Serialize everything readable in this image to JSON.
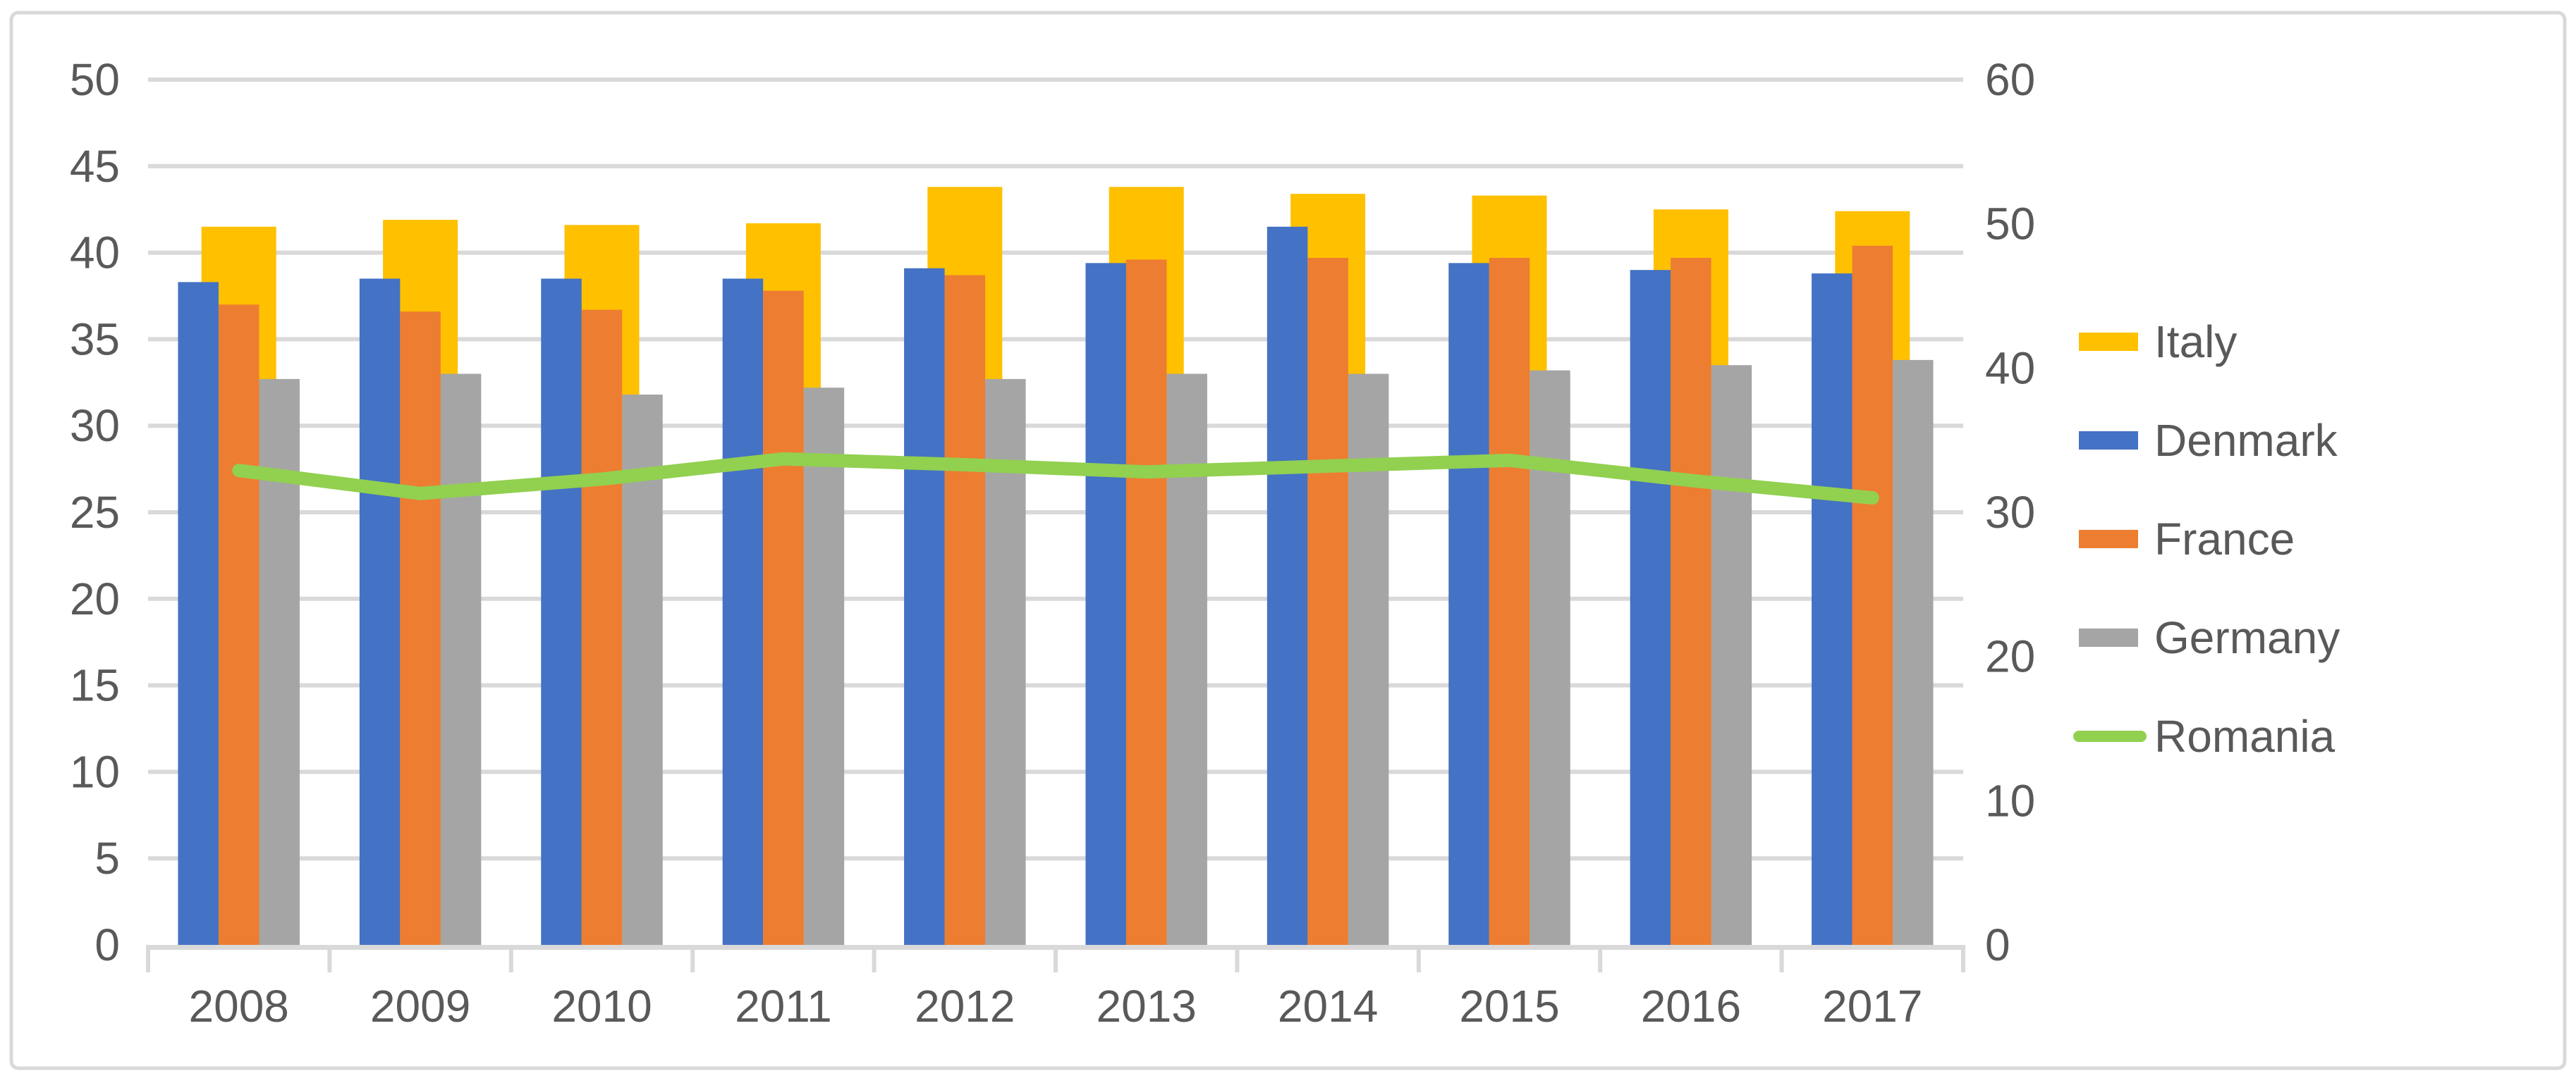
{
  "page": {
    "background": "#FFFFFF",
    "chart_border_color": "#D9D9D9",
    "text_color": "#595959",
    "gridline_color": "#D9D9D9"
  },
  "chart_data": {
    "type": "bar",
    "subtype": "combo-bar-line-dual-axis",
    "title": "",
    "xlabel": "",
    "ylabel": "",
    "grid": true,
    "legend_position": "right",
    "categories": [
      "2008",
      "2009",
      "2010",
      "2011",
      "2012",
      "2013",
      "2014",
      "2015",
      "2016",
      "2017"
    ],
    "axis_left": {
      "min": 0,
      "max": 50,
      "step": 5,
      "ticks": [
        "0",
        "5",
        "10",
        "15",
        "20",
        "25",
        "30",
        "35",
        "40",
        "45",
        "50"
      ]
    },
    "axis_right": {
      "min": 0,
      "max": 60,
      "step": 10,
      "ticks": [
        "0",
        "10",
        "20",
        "30",
        "40",
        "50",
        "60"
      ]
    },
    "series": [
      {
        "name": "Italy",
        "chart_type": "bar",
        "axis": "left",
        "color": "#FFC000",
        "behind": true,
        "values": [
          41.5,
          41.9,
          41.6,
          41.7,
          43.8,
          43.8,
          43.4,
          43.3,
          42.5,
          42.4
        ]
      },
      {
        "name": "Denmark",
        "chart_type": "bar",
        "axis": "left",
        "color": "#4472C4",
        "behind": false,
        "values": [
          38.3,
          38.5,
          38.5,
          38.5,
          39.1,
          39.4,
          41.5,
          39.4,
          39.0,
          38.8
        ]
      },
      {
        "name": "France",
        "chart_type": "bar",
        "axis": "left",
        "color": "#ED7D31",
        "behind": false,
        "values": [
          37.0,
          36.6,
          36.7,
          37.8,
          38.7,
          39.6,
          39.7,
          39.7,
          39.7,
          40.4
        ]
      },
      {
        "name": "Germany",
        "chart_type": "bar",
        "axis": "left",
        "color": "#A5A5A5",
        "behind": false,
        "values": [
          32.7,
          33.0,
          31.8,
          32.2,
          32.7,
          33.0,
          33.0,
          33.2,
          33.5,
          33.8
        ]
      },
      {
        "name": "Romania",
        "chart_type": "line",
        "axis": "right",
        "color": "#92D050",
        "values": [
          32.9,
          31.3,
          32.3,
          33.7,
          33.3,
          32.8,
          33.2,
          33.6,
          32.2,
          31.0
        ]
      }
    ],
    "legend": [
      {
        "label": "Italy",
        "swatch": "bar-swatch",
        "color": "#FFC000"
      },
      {
        "label": "Denmark",
        "swatch": "bar-swatch",
        "color": "#4472C4"
      },
      {
        "label": "France",
        "swatch": "bar-swatch",
        "color": "#ED7D31"
      },
      {
        "label": "Germany",
        "swatch": "bar-swatch",
        "color": "#A5A5A5"
      },
      {
        "label": "Romania",
        "swatch": "line-swatch",
        "color": "#92D050"
      }
    ]
  }
}
